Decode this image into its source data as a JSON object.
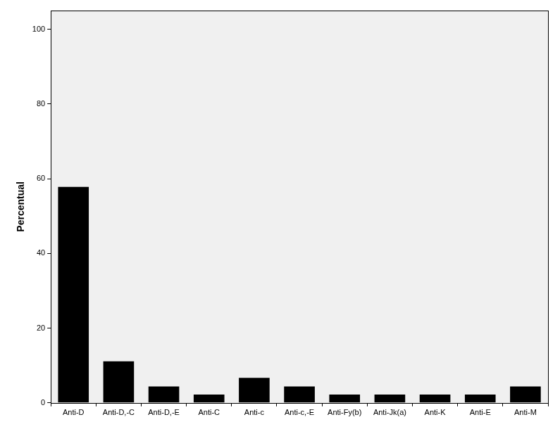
{
  "chart_data": {
    "type": "bar",
    "y_label": "Percentual",
    "categories": [
      "Anti-D",
      "Anti-D,-C",
      "Anti-D,-E",
      "Anti-C",
      "Anti-c",
      "Anti-c,-E",
      "Anti-Fy(b)",
      "Anti-Jk(a)",
      "Anti-K",
      "Anti-E",
      "Anti-M"
    ],
    "values": [
      57.8,
      11.1,
      4.4,
      2.2,
      6.7,
      4.4,
      2.2,
      2.2,
      2.2,
      2.2,
      4.4
    ],
    "color": "#000000",
    "ylim": [
      0,
      105
    ],
    "yticks": [
      0,
      20,
      40,
      60,
      80,
      100
    ],
    "grid": false
  }
}
